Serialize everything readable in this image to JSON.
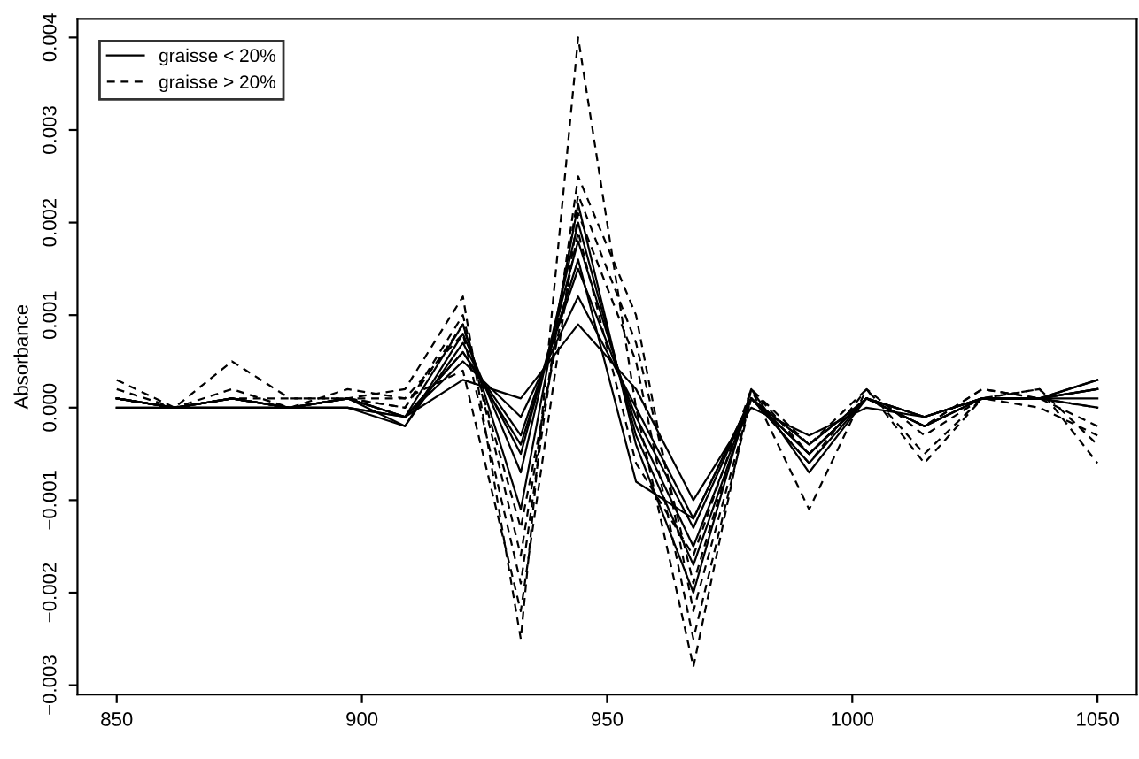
{
  "chart_data": {
    "type": "line",
    "ylabel": "Absorbance",
    "legend": "top left",
    "grid": false,
    "marker": "none",
    "x": [
      850,
      861.8,
      873.5,
      885.3,
      897.1,
      908.8,
      920.6,
      932.4,
      944.1,
      955.9,
      967.6,
      979.4,
      991.2,
      1002.9,
      1014.7,
      1026.5,
      1038.2,
      1050
    ],
    "xlim": [
      842,
      1058
    ],
    "xticks": [
      850,
      900,
      950,
      1000,
      1050
    ],
    "ylim": [
      -0.0031,
      0.0042
    ],
    "yticks": [
      {
        "value": -0.003,
        "label": "−0.003"
      },
      {
        "value": -0.002,
        "label": "−0.002"
      },
      {
        "value": -0.001,
        "label": "−0.001"
      },
      {
        "value": 0.0,
        "label": "0.000"
      },
      {
        "value": 0.001,
        "label": "0.001"
      },
      {
        "value": 0.002,
        "label": "0.002"
      },
      {
        "value": 0.003,
        "label": "0.003"
      },
      {
        "value": 0.004,
        "label": "0.004"
      }
    ],
    "series": [
      {
        "name": "graisse < 20%",
        "color": "#000000",
        "line_style": "solid",
        "values": [
          0.0001,
          0.0,
          0.0001,
          0.0,
          0.0001,
          -0.0001,
          0.0006,
          -0.0003,
          0.0015,
          -0.0001,
          -0.0013,
          0.0001,
          -0.0005,
          0.0001,
          -0.0001,
          0.0001,
          0.0001,
          0.0002
        ]
      },
      {
        "color": "#000000",
        "line_style": "solid",
        "values": [
          0.0,
          0.0,
          0.0,
          0.0,
          0.0,
          -0.0001,
          0.0003,
          0.0001,
          0.0009,
          0.0002,
          -0.001,
          0.0,
          -0.0003,
          0.0,
          -0.0001,
          0.0001,
          0.0001,
          0.0
        ]
      },
      {
        "color": "#000000",
        "line_style": "solid",
        "values": [
          0.0001,
          0.0,
          0.0,
          0.0,
          0.0,
          -0.0001,
          0.0005,
          -0.0001,
          0.0012,
          0.0,
          -0.0012,
          0.0001,
          -0.0004,
          0.0001,
          -0.0001,
          0.0001,
          0.0001,
          0.0001
        ]
      },
      {
        "color": "#000000",
        "line_style": "solid",
        "values": [
          0.0001,
          0.0,
          0.0001,
          0.0,
          0.0001,
          -0.0002,
          0.0007,
          -0.0005,
          0.0018,
          -0.0002,
          -0.0015,
          0.0001,
          -0.0005,
          0.0001,
          -0.0002,
          0.0001,
          0.0001,
          0.0002
        ]
      },
      {
        "color": "#000000",
        "line_style": "solid",
        "values": [
          0.0001,
          0.0,
          0.0001,
          0.0,
          0.0,
          -0.0002,
          0.0008,
          -0.0007,
          0.002,
          -0.0003,
          -0.0017,
          0.0001,
          -0.0006,
          0.0001,
          -0.0002,
          0.0001,
          0.0001,
          0.0003
        ]
      },
      {
        "color": "#000000",
        "line_style": "solid",
        "values": [
          0.0001,
          0.0,
          0.0001,
          0.0,
          0.0001,
          -0.0001,
          0.0009,
          -0.0011,
          0.0022,
          -0.0004,
          -0.002,
          0.0002,
          -0.0007,
          0.0001,
          -0.0002,
          0.0001,
          0.0001,
          0.0003
        ]
      },
      {
        "color": "#000000",
        "line_style": "solid",
        "values": [
          0.0,
          0.0,
          0.0,
          0.0,
          0.0001,
          -0.0001,
          0.0006,
          -0.0004,
          0.0016,
          -0.0008,
          -0.0012,
          0.0001,
          -0.0005,
          0.0001,
          -0.0001,
          0.0001,
          0.0001,
          0.0002
        ]
      },
      {
        "name": "graisse > 20%",
        "color": "#000000",
        "line_style": "dashed",
        "values": [
          0.0003,
          0.0,
          0.0005,
          0.0001,
          0.0001,
          0.0002,
          0.0012,
          -0.0025,
          0.004,
          0.0,
          -0.0028,
          0.0002,
          -0.0011,
          0.0002,
          -0.0006,
          0.0001,
          0.0002,
          -0.0006
        ]
      },
      {
        "color": "#000000",
        "line_style": "dashed",
        "values": [
          0.0001,
          0.0,
          0.0002,
          0.0,
          0.0001,
          0.0001,
          0.0008,
          -0.0019,
          0.0025,
          0.001,
          -0.0022,
          0.0001,
          -0.0006,
          0.0002,
          -0.0003,
          0.0001,
          0.0,
          -0.0003
        ]
      },
      {
        "color": "#000000",
        "line_style": "dashed",
        "values": [
          0.0001,
          0.0,
          0.0001,
          0.0,
          0.0001,
          0.0,
          0.001,
          -0.0016,
          0.0023,
          0.0007,
          -0.0019,
          0.0002,
          -0.0005,
          0.0001,
          -0.0002,
          0.0002,
          0.0001,
          -0.0002
        ]
      },
      {
        "color": "#000000",
        "line_style": "dashed",
        "values": [
          0.0002,
          0.0,
          0.0001,
          0.0,
          0.0002,
          0.0001,
          0.0004,
          -0.0022,
          0.0021,
          0.0005,
          -0.0025,
          0.0001,
          -0.0004,
          0.0002,
          -0.0005,
          0.0001,
          0.0002,
          -0.0004
        ]
      },
      {
        "color": "#000000",
        "line_style": "dashed",
        "values": [
          0.0001,
          0.0,
          0.0001,
          0.0001,
          0.0001,
          0.0,
          0.0009,
          -0.0013,
          0.0019,
          -0.0006,
          -0.0016,
          0.0002,
          -0.0004,
          0.0001,
          -0.0002,
          0.0002,
          0.0001,
          0.0
        ]
      }
    ]
  }
}
